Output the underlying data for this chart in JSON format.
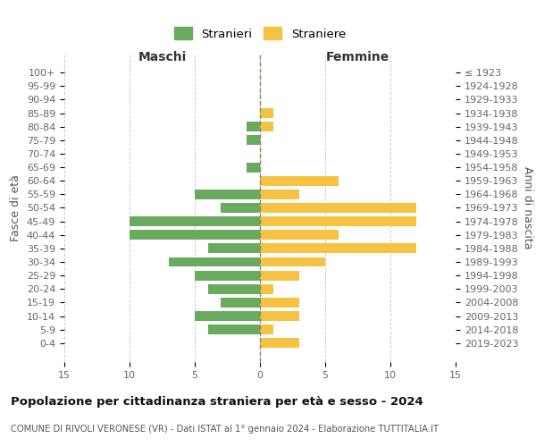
{
  "age_groups": [
    "0-4",
    "5-9",
    "10-14",
    "15-19",
    "20-24",
    "25-29",
    "30-34",
    "35-39",
    "40-44",
    "45-49",
    "50-54",
    "55-59",
    "60-64",
    "65-69",
    "70-74",
    "75-79",
    "80-84",
    "85-89",
    "90-94",
    "95-99",
    "100+"
  ],
  "birth_years": [
    "2019-2023",
    "2014-2018",
    "2009-2013",
    "2004-2008",
    "1999-2003",
    "1994-1998",
    "1989-1993",
    "1984-1988",
    "1979-1983",
    "1974-1978",
    "1969-1973",
    "1964-1968",
    "1959-1963",
    "1954-1958",
    "1949-1953",
    "1944-1948",
    "1939-1943",
    "1934-1938",
    "1929-1933",
    "1924-1928",
    "≤ 1923"
  ],
  "males": [
    0,
    4,
    5,
    3,
    4,
    5,
    7,
    4,
    10,
    10,
    3,
    5,
    0,
    1,
    0,
    1,
    1,
    0,
    0,
    0,
    0
  ],
  "females": [
    3,
    1,
    3,
    3,
    1,
    3,
    5,
    12,
    6,
    12,
    12,
    3,
    6,
    0,
    0,
    0,
    1,
    1,
    0,
    0,
    0
  ],
  "male_color": "#6aaa5e",
  "female_color": "#f5c242",
  "xlim": 15,
  "title": "Popolazione per cittadinanza straniera per età e sesso - 2024",
  "subtitle": "COMUNE DI RIVOLI VERONESE (VR) - Dati ISTAT al 1° gennaio 2024 - Elaborazione TUTTITALIA.IT",
  "legend_male": "Stranieri",
  "legend_female": "Straniere",
  "ylabel_left": "Fasce di età",
  "ylabel_right": "Anni di nascita",
  "label_maschi": "Maschi",
  "label_femmine": "Femmine",
  "background_color": "#ffffff",
  "grid_color": "#cccccc"
}
